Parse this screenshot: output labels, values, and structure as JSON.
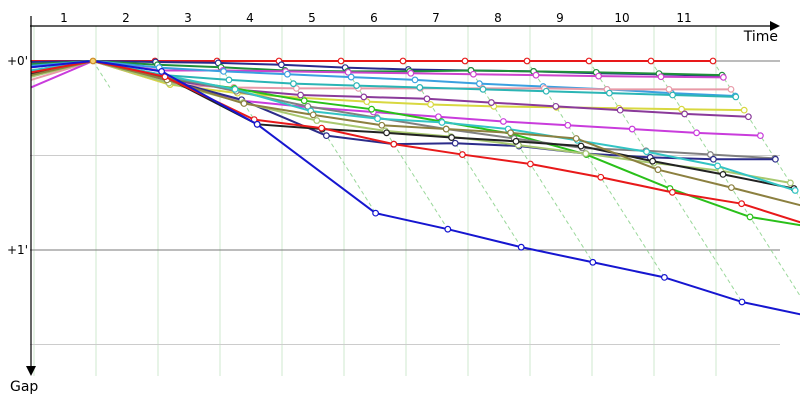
{
  "chart_data": {
    "type": "line",
    "xlabel": "Time",
    "ylabel": "Gap",
    "lap_labels": [
      "1",
      "2",
      "3",
      "4",
      "5",
      "6",
      "7",
      "8",
      "9",
      "10",
      "11"
    ],
    "y_ticks": [
      {
        "label": "+0'",
        "value": 0
      },
      {
        "label": "+1'",
        "value": 60
      }
    ],
    "ylim": [
      0,
      90
    ],
    "grid": true,
    "series": [
      {
        "color": "#e8191a",
        "points": [
          [
            1,
            0
          ],
          [
            2,
            0
          ],
          [
            3,
            0
          ],
          [
            4,
            0
          ],
          [
            5,
            0
          ],
          [
            6,
            0
          ],
          [
            7,
            0
          ],
          [
            8,
            0
          ],
          [
            9,
            0
          ],
          [
            10,
            0
          ],
          [
            11,
            0
          ]
        ]
      },
      {
        "color": "#2a2a8c",
        "points": [
          [
            1,
            0.3
          ],
          [
            2,
            0.3
          ],
          [
            3,
            0.6
          ],
          [
            4,
            1.2
          ],
          [
            5,
            2.1
          ],
          [
            6,
            2.7
          ],
          [
            7,
            3.0
          ],
          [
            8,
            3.3
          ],
          [
            9,
            3.9
          ],
          [
            10,
            4.2
          ],
          [
            11,
            4.8
          ]
        ]
      },
      {
        "color": "#1f8f3a",
        "points": [
          [
            1,
            1.0
          ],
          [
            2,
            1.2
          ],
          [
            3,
            2.0
          ],
          [
            4,
            3.0
          ],
          [
            5,
            3.3
          ],
          [
            6,
            3.3
          ],
          [
            7,
            3.0
          ],
          [
            8,
            3.3
          ],
          [
            9,
            3.6
          ],
          [
            10,
            4.0
          ],
          [
            11,
            4.5
          ]
        ]
      },
      {
        "color": "#cc44cc",
        "points": [
          [
            1,
            2.0
          ],
          [
            2,
            3.0
          ],
          [
            3,
            3.0
          ],
          [
            4,
            3.3
          ],
          [
            5,
            3.6
          ],
          [
            6,
            3.9
          ],
          [
            7,
            4.2
          ],
          [
            8,
            4.5
          ],
          [
            9,
            4.8
          ],
          [
            10,
            5.0
          ],
          [
            11,
            5.2
          ]
        ]
      },
      {
        "color": "#3ba0e0",
        "points": [
          [
            1,
            1.5
          ],
          [
            2,
            2.1
          ],
          [
            3,
            3.3
          ],
          [
            4,
            4.2
          ],
          [
            5,
            5.1
          ],
          [
            6,
            6.0
          ],
          [
            7,
            7.2
          ],
          [
            8,
            8.1
          ],
          [
            9,
            9.0
          ],
          [
            10,
            10.2
          ],
          [
            11,
            11.1
          ]
        ]
      },
      {
        "color": "#e89aa8",
        "points": [
          [
            1,
            6.0
          ],
          [
            2,
            7.5
          ],
          [
            3,
            8.4
          ],
          [
            4,
            8.7
          ],
          [
            5,
            8.7
          ],
          [
            6,
            8.7
          ],
          [
            7,
            8.7
          ],
          [
            8,
            8.7
          ],
          [
            9,
            9.0
          ],
          [
            10,
            9.0
          ],
          [
            11,
            9.0
          ]
        ]
      },
      {
        "color": "#2bb5b5",
        "points": [
          [
            1,
            3.0
          ],
          [
            2,
            4.5
          ],
          [
            3,
            6.0
          ],
          [
            4,
            7.2
          ],
          [
            5,
            7.8
          ],
          [
            6,
            8.4
          ],
          [
            7,
            9.0
          ],
          [
            8,
            9.6
          ],
          [
            9,
            10.2
          ],
          [
            10,
            10.8
          ],
          [
            11,
            11.4
          ]
        ]
      },
      {
        "color": "#d8d840",
        "points": [
          [
            1,
            3.6
          ],
          [
            2,
            7.5
          ],
          [
            3,
            10.2
          ],
          [
            4,
            11.7
          ],
          [
            5,
            12.9
          ],
          [
            6,
            13.8
          ],
          [
            7,
            14.4
          ],
          [
            8,
            14.7
          ],
          [
            9,
            15.0
          ],
          [
            10,
            15.3
          ],
          [
            11,
            15.6
          ]
        ]
      },
      {
        "color": "#8a3a9a",
        "points": [
          [
            1,
            3.3
          ],
          [
            2,
            6.0
          ],
          [
            3,
            9.0
          ],
          [
            4,
            10.8
          ],
          [
            5,
            11.4
          ],
          [
            6,
            12.0
          ],
          [
            7,
            13.2
          ],
          [
            8,
            14.4
          ],
          [
            9,
            15.6
          ],
          [
            10,
            16.8
          ],
          [
            11,
            17.7
          ]
        ]
      },
      {
        "color": "#c93cdc",
        "points": [
          [
            1,
            8.4
          ],
          [
            2,
            6.9
          ],
          [
            3,
            12.6
          ],
          [
            4,
            14.7
          ],
          [
            5,
            16.2
          ],
          [
            6,
            17.7
          ],
          [
            7,
            19.2
          ],
          [
            8,
            20.4
          ],
          [
            9,
            21.6
          ],
          [
            10,
            22.8
          ],
          [
            11,
            23.7
          ]
        ]
      },
      {
        "color": "#2ac01a",
        "points": [
          [
            1,
            4.2
          ],
          [
            2,
            5.4
          ],
          [
            3,
            8.7
          ],
          [
            4,
            12.6
          ],
          [
            5,
            15.3
          ],
          [
            6,
            19.2
          ],
          [
            7,
            23.1
          ],
          [
            8,
            29.7
          ],
          [
            9,
            40.5
          ],
          [
            10,
            49.5
          ],
          [
            11,
            53.1
          ]
        ]
      },
      {
        "color": "#808080",
        "points": [
          [
            1,
            3.3
          ],
          [
            2,
            4.8
          ],
          [
            3,
            9.6
          ],
          [
            4,
            14.4
          ],
          [
            5,
            18.0
          ],
          [
            6,
            21.6
          ],
          [
            7,
            24.6
          ],
          [
            8,
            27.6
          ],
          [
            9,
            28.5
          ],
          [
            10,
            29.7
          ],
          [
            11,
            30.9
          ]
        ]
      },
      {
        "color": "#2c2c8a",
        "points": [
          [
            1,
            4.5
          ],
          [
            2,
            6.0
          ],
          [
            3,
            12.3
          ],
          [
            4,
            23.7
          ],
          [
            5,
            26.4
          ],
          [
            6,
            26.1
          ],
          [
            7,
            27.0
          ],
          [
            8,
            29.4
          ],
          [
            9,
            30.6
          ],
          [
            10,
            31.2
          ],
          [
            11,
            31.2
          ]
        ]
      },
      {
        "color": "#a8c870",
        "points": [
          [
            1,
            5.0
          ],
          [
            2,
            7.0
          ],
          [
            3,
            13.2
          ],
          [
            4,
            18.9
          ],
          [
            5,
            22.2
          ],
          [
            6,
            24.0
          ],
          [
            7,
            26.7
          ],
          [
            8,
            29.4
          ],
          [
            9,
            32.4
          ],
          [
            10,
            34.8
          ],
          [
            11,
            38.7
          ]
        ]
      },
      {
        "color": "#222222",
        "points": [
          [
            1,
            4.0
          ],
          [
            2,
            5.0
          ],
          [
            3,
            20.1
          ],
          [
            4,
            21.6
          ],
          [
            5,
            22.8
          ],
          [
            6,
            24.3
          ],
          [
            7,
            25.5
          ],
          [
            8,
            27.0
          ],
          [
            9,
            31.8
          ],
          [
            10,
            36.0
          ],
          [
            11,
            40.5
          ]
        ]
      },
      {
        "color": "#33c4c4",
        "points": [
          [
            1,
            3.0
          ],
          [
            2,
            4.5
          ],
          [
            3,
            9.0
          ],
          [
            4,
            15.9
          ],
          [
            5,
            18.3
          ],
          [
            6,
            19.5
          ],
          [
            7,
            21.6
          ],
          [
            8,
            25.2
          ],
          [
            9,
            28.8
          ],
          [
            10,
            33.3
          ],
          [
            11,
            41.1
          ]
        ]
      },
      {
        "color": "#8c8040",
        "points": [
          [
            1,
            4.5
          ],
          [
            2,
            6.0
          ],
          [
            3,
            13.5
          ],
          [
            4,
            17.1
          ],
          [
            5,
            20.4
          ],
          [
            6,
            21.6
          ],
          [
            7,
            22.8
          ],
          [
            8,
            24.6
          ],
          [
            9,
            34.5
          ],
          [
            10,
            40.2
          ],
          [
            11,
            46.2
          ]
        ]
      },
      {
        "color": "#e8191a",
        "points": [
          [
            1,
            3.6
          ],
          [
            2,
            5.0
          ],
          [
            3,
            18.6
          ],
          [
            4,
            21.3
          ],
          [
            5,
            26.4
          ],
          [
            6,
            29.7
          ],
          [
            7,
            32.7
          ],
          [
            8,
            36.9
          ],
          [
            9,
            41.7
          ],
          [
            10,
            45.3
          ],
          [
            11,
            53.1
          ]
        ]
      },
      {
        "color": "#1616d0",
        "points": [
          [
            1,
            2.0
          ],
          [
            2,
            3.3
          ],
          [
            3,
            20.1
          ],
          [
            4,
            48.3
          ],
          [
            5,
            53.4
          ],
          [
            6,
            59.1
          ],
          [
            7,
            63.9
          ],
          [
            8,
            68.7
          ],
          [
            9,
            76.5
          ],
          [
            10,
            81.3
          ],
          [
            11,
            93.3
          ]
        ]
      }
    ]
  }
}
